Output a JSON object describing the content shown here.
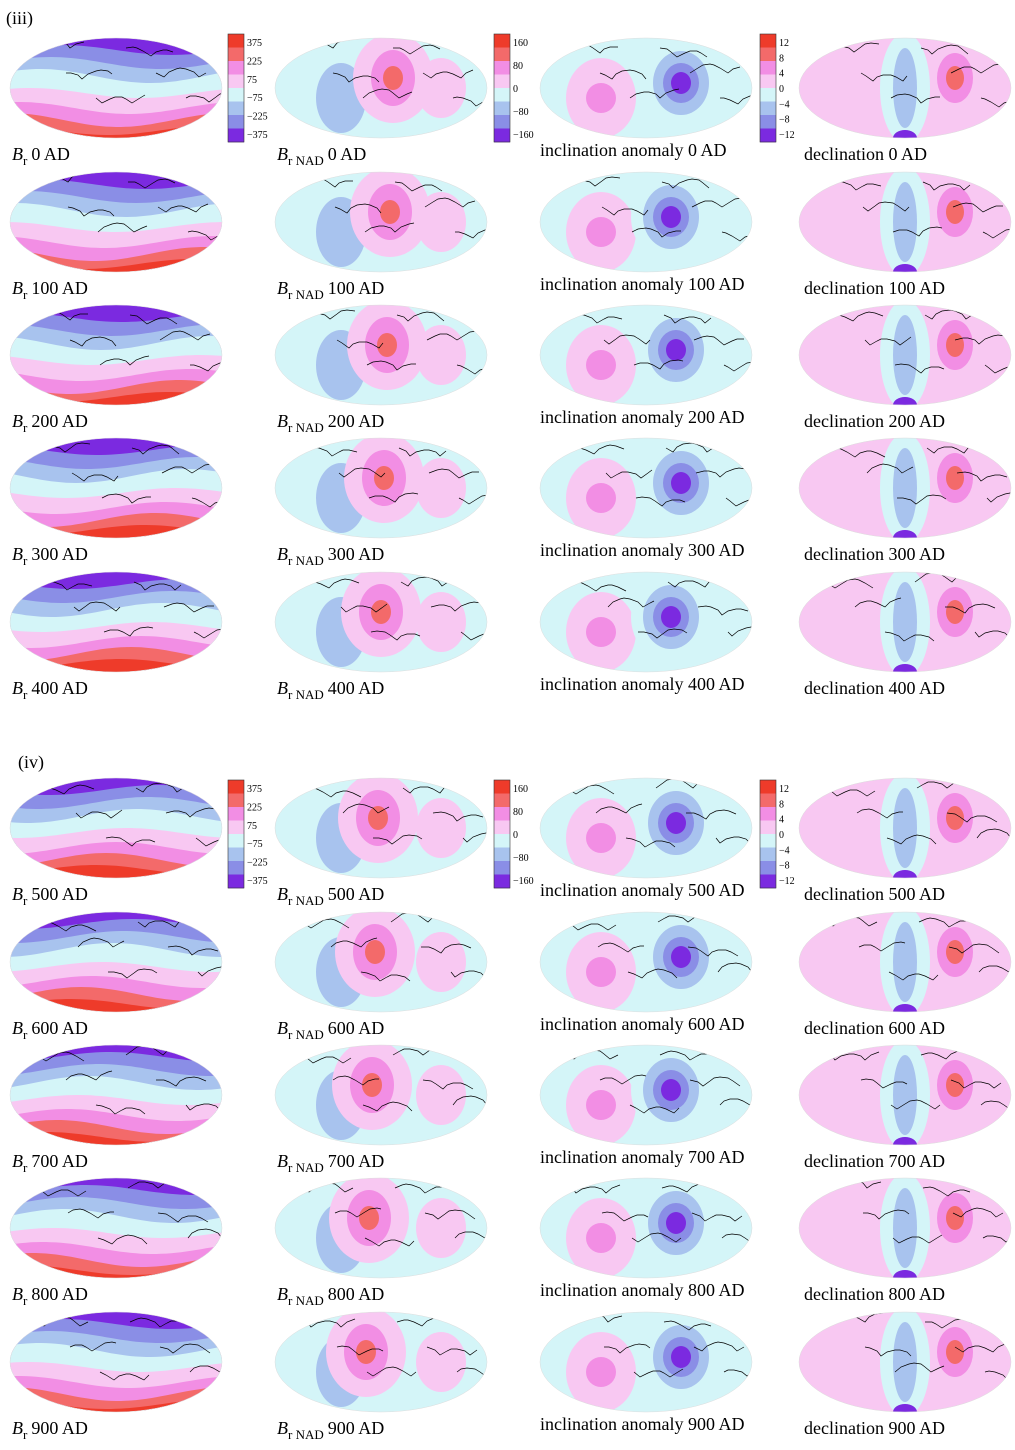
{
  "panels": [
    {
      "label": "(iii)",
      "colorbars": [
        {
          "ticks": [
            "375",
            "225",
            "75",
            "−75",
            "−225",
            "−375"
          ]
        },
        {
          "ticks": [
            "160",
            "80",
            "0",
            "−80",
            "−160"
          ]
        },
        {
          "ticks": [
            "12",
            "8",
            "4",
            "0",
            "−4",
            "−8",
            "−12"
          ]
        }
      ],
      "rows": [
        {
          "br": {
            "symbol": "B",
            "sub": "r",
            "epoch": "0 AD"
          },
          "nad": {
            "symbol": "B",
            "sub": "r NAD",
            "epoch": "0 AD"
          },
          "inclination": "inclination anomaly 0 AD",
          "declination": "declination 0 AD"
        },
        {
          "br": {
            "symbol": "B",
            "sub": "r",
            "epoch": "100 AD"
          },
          "nad": {
            "symbol": "B",
            "sub": "r NAD",
            "epoch": "100 AD"
          },
          "inclination": "inclination anomaly 100 AD",
          "declination": "declination 100 AD"
        },
        {
          "br": {
            "symbol": "B",
            "sub": "r",
            "epoch": "200 AD"
          },
          "nad": {
            "symbol": "B",
            "sub": "r NAD",
            "epoch": "200 AD"
          },
          "inclination": "inclination anomaly 200 AD",
          "declination": "declination 200 AD"
        },
        {
          "br": {
            "symbol": "B",
            "sub": "r",
            "epoch": "300 AD"
          },
          "nad": {
            "symbol": "B",
            "sub": "r NAD",
            "epoch": "300 AD"
          },
          "inclination": "inclination anomaly 300 AD",
          "declination": "declination 300 AD"
        },
        {
          "br": {
            "symbol": "B",
            "sub": "r",
            "epoch": "400 AD"
          },
          "nad": {
            "symbol": "B",
            "sub": "r NAD",
            "epoch": "400 AD"
          },
          "inclination": "inclination anomaly 400 AD",
          "declination": "declination 400 AD"
        }
      ]
    },
    {
      "label": "(iv)",
      "colorbars": [
        {
          "ticks": [
            "375",
            "225",
            "75",
            "−75",
            "−225",
            "−375"
          ]
        },
        {
          "ticks": [
            "160",
            "80",
            "0",
            "−80",
            "−160"
          ]
        },
        {
          "ticks": [
            "12",
            "8",
            "4",
            "0",
            "−4",
            "−8",
            "−12"
          ]
        }
      ],
      "rows": [
        {
          "br": {
            "symbol": "B",
            "sub": "r",
            "epoch": "500 AD"
          },
          "nad": {
            "symbol": "B",
            "sub": "r NAD",
            "epoch": "500 AD"
          },
          "inclination": "inclination anomaly 500 AD",
          "declination": "declination 500 AD"
        },
        {
          "br": {
            "symbol": "B",
            "sub": "r",
            "epoch": "600 AD"
          },
          "nad": {
            "symbol": "B",
            "sub": "r NAD",
            "epoch": "600 AD"
          },
          "inclination": "inclination anomaly 600 AD",
          "declination": "declination 600 AD"
        },
        {
          "br": {
            "symbol": "B",
            "sub": "r",
            "epoch": "700 AD"
          },
          "nad": {
            "symbol": "B",
            "sub": "r NAD",
            "epoch": "700 AD"
          },
          "inclination": "inclination anomaly 700 AD",
          "declination": "declination 700 AD"
        },
        {
          "br": {
            "symbol": "B",
            "sub": "r",
            "epoch": "800 AD"
          },
          "nad": {
            "symbol": "B",
            "sub": "r NAD",
            "epoch": "800 AD"
          },
          "inclination": "inclination anomaly 800 AD",
          "declination": "declination 800 AD"
        },
        {
          "br": {
            "symbol": "B",
            "sub": "r",
            "epoch": "900 AD"
          },
          "nad": {
            "symbol": "B",
            "sub": "r NAD",
            "epoch": "900 AD"
          },
          "inclination": "inclination anomaly 900 AD",
          "declination": "declination 900 AD"
        }
      ]
    }
  ]
}
